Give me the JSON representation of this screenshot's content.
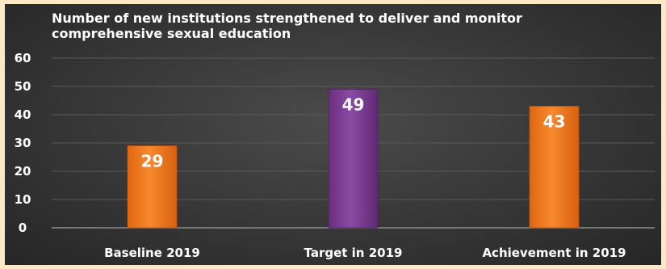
{
  "chart_data": {
    "type": "bar",
    "title": "Number of new institutions strengthened to deliver and monitor comprehensive sexual education",
    "categories": [
      "Baseline 2019",
      "Target in 2019",
      "Achievement in 2019"
    ],
    "values": [
      29,
      49,
      43
    ],
    "data_labels": [
      "29",
      "49",
      "43"
    ],
    "bar_colors": [
      "#f47b20",
      "#7a3d91",
      "#f47b20"
    ],
    "ylim": [
      0,
      60
    ],
    "yticks": [
      0,
      10,
      20,
      30,
      40,
      50,
      60
    ],
    "xlabel": "",
    "ylabel": "",
    "grid": true,
    "legend": "none"
  }
}
